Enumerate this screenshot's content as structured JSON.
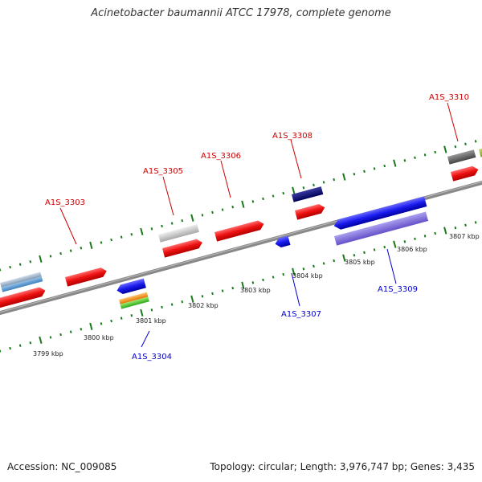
{
  "title": "Acinetobacter baumannii ATCC 17978, complete genome",
  "footer": {
    "accession": "Accession: NC_009085",
    "summary": "Topology: circular; Length: 3,976,747 bp; Genes: 3,435"
  },
  "colors": {
    "forward_gene": "#ee1111",
    "reverse_gene": "#1a1aee",
    "backbone": "#888888",
    "tick": "#1a7a1a",
    "label_forward": "#cc0000",
    "label_reverse": "#0000cc"
  },
  "tick_labels": [
    "3799 kbp",
    "3800 kbp",
    "3801 kbp",
    "3802 kbp",
    "3803 kbp",
    "3804 kbp",
    "3805 kbp",
    "3806 kbp",
    "3807 kbp"
  ],
  "gene_labels": {
    "forward": [
      "A1S_3303",
      "A1S_3305",
      "A1S_3306",
      "A1S_3308",
      "A1S_3310"
    ],
    "reverse": [
      "A1S_3304",
      "A1S_3307",
      "A1S_3309"
    ]
  }
}
